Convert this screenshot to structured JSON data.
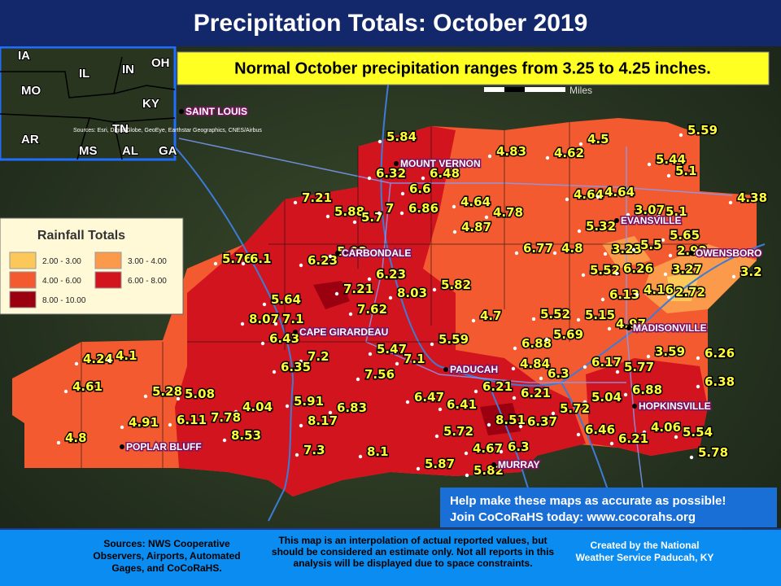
{
  "header": {
    "title": "Precipitation Totals: October 2019",
    "banner": "Normal October precipitation ranges from 3.25 to 4.25 inches."
  },
  "scale_label": "Miles",
  "inset": {
    "states": [
      "IA",
      "IL",
      "IN",
      "OH",
      "MO",
      "KY",
      "AR",
      "TN",
      "MS",
      "AL",
      "GA"
    ],
    "attribution": "Sources: Esri, DigitalGlobe, GeoEye, Earthstar Geographics, CNES/Airbus"
  },
  "legend": {
    "title": "Rainfall Totals",
    "items": [
      {
        "label": "2.00 - 3.00",
        "color": "#fdc85a"
      },
      {
        "label": "3.00 - 4.00",
        "color": "#fb9a4a"
      },
      {
        "label": "4.00 - 6.00",
        "color": "#f35a30"
      },
      {
        "label": "6.00 - 8.00",
        "color": "#d2141e"
      },
      {
        "label": "8.00 - 10.00",
        "color": "#9a0010"
      }
    ]
  },
  "cities": [
    "SAINT LOUIS",
    "MOUNT VERNON",
    "CARBONDALE",
    "CAPE GIRARDEAU",
    "PADUCAH",
    "POPLAR BLUFF",
    "MURRAY",
    "EVANSVILLE",
    "OWENSBORO",
    "MADISONVILLE",
    "HOPKINSVILLE"
  ],
  "station_values": [
    "5.84",
    "6.32",
    "6.48",
    "4.83",
    "4.62",
    "4.5",
    "5.59",
    "5.44",
    "5.1",
    "4.38",
    "7.21",
    "5.88",
    "5.7",
    "6.6",
    "6.86",
    "7",
    "4.64",
    "4.78",
    "4.87",
    "4.64",
    "4.64",
    "3.07",
    "5.1",
    "5.32",
    "5.65",
    "6.77",
    "4.8",
    "3.23",
    "5.5",
    "2.92",
    "5.76",
    "6.1",
    "6.23",
    "5.93",
    "6.23",
    "7.21",
    "8.03",
    "5.82",
    "5.52",
    "6.26",
    "3.27",
    "3.2",
    "6.13",
    "4.16",
    "2.72",
    "5.64",
    "8.07",
    "7.1",
    "7.62",
    "4.7",
    "5.52",
    "5.15",
    "4.97",
    "6.43",
    "7.2",
    "5.47",
    "5.59",
    "6.88",
    "5.69",
    "4.24",
    "4.1",
    "6.35",
    "7.1",
    "3.59",
    "6.26",
    "4.84",
    "6.17",
    "5.77",
    "7.56",
    "6.3",
    "6.21",
    "6.21",
    "6.38",
    "4.61",
    "5.28",
    "5.08",
    "6.88",
    "5.91",
    "6.47",
    "5.04",
    "4.04",
    "7.78",
    "6.83",
    "6.41",
    "5.72",
    "4.91",
    "6.11",
    "8.17",
    "8.51",
    "6.37",
    "6.46",
    "4.06",
    "5.54",
    "8.53",
    "5.72",
    "6.21",
    "4.8",
    "4.67",
    "6.3",
    "5.78",
    "7.3",
    "8.1",
    "5.87",
    "5.82"
  ],
  "help": [
    "Help make these maps as accurate as possible!",
    "Join CoCoRaHS today: www.cocorahs.org"
  ],
  "footer": {
    "sources": "Sources: NWS Cooperative Observers, Airports, Automated Gages, and CoCoRaHS.",
    "disclaimer": "This map is an interpolation of actual reported values, but should be considered an estimate only. Not all reports in this analysis will be displayed due to space constraints.",
    "credit": "Created by the National Weather Service Paducah, KY"
  }
}
